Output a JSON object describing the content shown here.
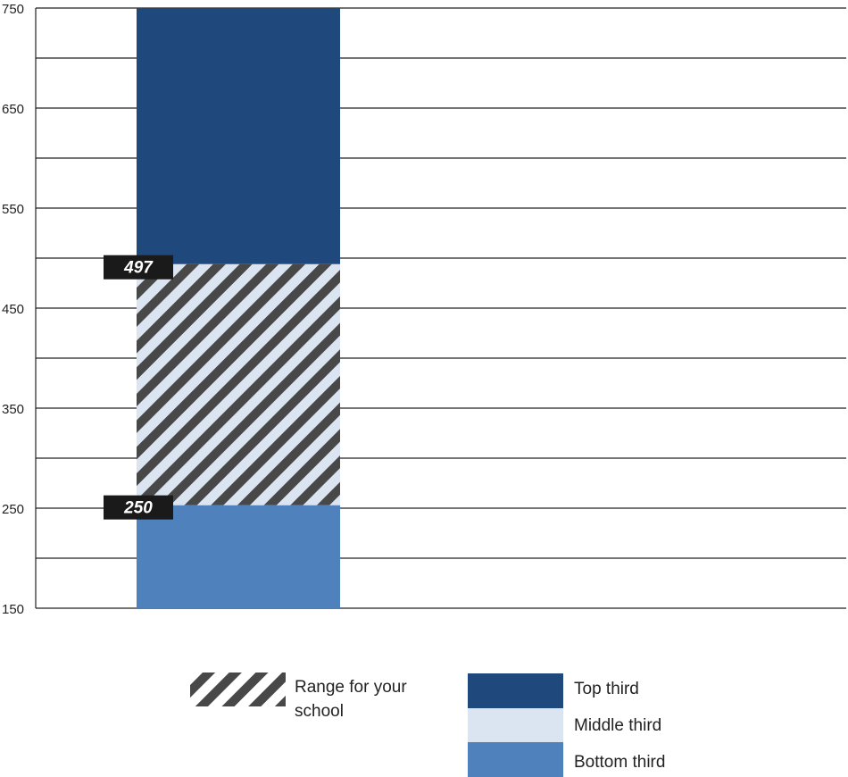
{
  "chart_data": {
    "type": "bar",
    "title": "",
    "xlabel": "",
    "ylabel": "",
    "ylim": [
      150,
      750
    ],
    "yticks": [
      150,
      250,
      350,
      450,
      550,
      650,
      750
    ],
    "grid_step": 50,
    "grid": true,
    "bar_segments": [
      {
        "name": "Bottom third",
        "from": 150,
        "to": 253,
        "color": "#4f81bd"
      },
      {
        "name": "Middle third",
        "from": 253,
        "to": 494,
        "color": "#dbe5f1",
        "hatched": true
      },
      {
        "name": "Top third",
        "from": 494,
        "to": 750,
        "color": "#1f497d"
      }
    ],
    "school_range": {
      "low": 250,
      "high": 497,
      "low_label": "250",
      "high_label": "497",
      "hatch_color": "#484848"
    },
    "legend": {
      "placement": "bottom",
      "range_label": "Range for your school",
      "items": [
        {
          "label": "Top third",
          "color": "#1f497d"
        },
        {
          "label": "Middle third",
          "color": "#dbe5f1"
        },
        {
          "label": "Bottom third",
          "color": "#4f81bd"
        }
      ]
    }
  }
}
